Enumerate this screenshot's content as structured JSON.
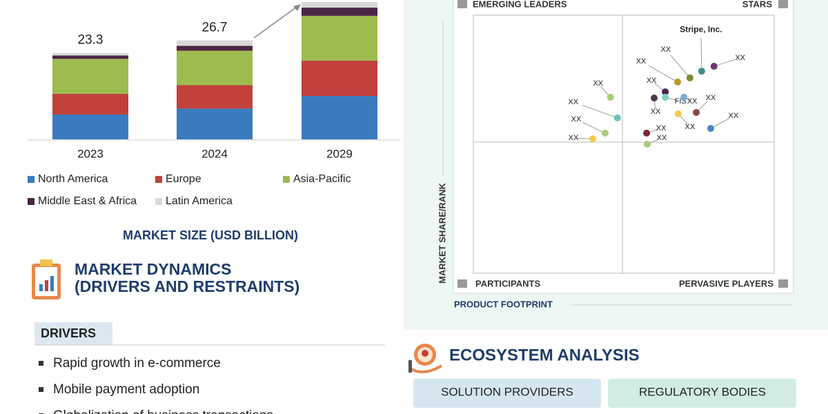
{
  "chart_data": [
    {
      "type": "bar",
      "stacked": true,
      "categories": [
        "2023",
        "2024",
        "2029"
      ],
      "series": [
        {
          "name": "North America",
          "color": "#3a7bbf",
          "values": [
            6.7,
            8.3,
            11.7
          ]
        },
        {
          "name": "Europe",
          "color": "#c2403a",
          "values": [
            5.6,
            6.3,
            9.5
          ]
        },
        {
          "name": "Asia-Pacific",
          "color": "#9dbb4e",
          "values": [
            9.4,
            9.3,
            12.1
          ]
        },
        {
          "name": "Middle East & Africa",
          "color": "#4a2545",
          "values": [
            0.9,
            1.3,
            2.2
          ]
        },
        {
          "name": "Latin America",
          "color": "#d9d9d9",
          "values": [
            0.7,
            1.5,
            1.5
          ]
        }
      ],
      "totals": [
        23.3,
        26.7
      ],
      "x_label": "MARKET SIZE (USD BILLION)"
    },
    {
      "type": "scatter",
      "x_label": "PRODUCT FOOTPRINT",
      "y_label": "MARKET SHARE/RANK",
      "quadrants": {
        "top_left": "EMERGING LEADERS",
        "top_right": "STARS",
        "bottom_left": "PARTICIPANTS",
        "bottom_right": "PERVASIVE PLAYERS"
      },
      "xlim": [
        0,
        100
      ],
      "ylim": [
        0,
        100
      ],
      "points": [
        {
          "label": "XX",
          "x": 80.0,
          "y": 80.2,
          "color": "#6b3a6b"
        },
        {
          "label": "Stripe, Inc.",
          "x": 75.9,
          "y": 78.3,
          "color": "#3f8f85"
        },
        {
          "label": "XX",
          "x": 72.0,
          "y": 75.7,
          "color": "#7a8a3a"
        },
        {
          "label": "XX",
          "x": 67.9,
          "y": 74.1,
          "color": "#b59a2a"
        },
        {
          "label": "XX",
          "x": 63.8,
          "y": 70.3,
          "color": "#4a2545"
        },
        {
          "label": "XX",
          "x": 60.1,
          "y": 67.9,
          "color": "#4b3b4b"
        },
        {
          "label": "FIS",
          "x": 63.8,
          "y": 68.2,
          "color": "#7fd0c8"
        },
        {
          "label": "XX",
          "x": 70.0,
          "y": 68.2,
          "color": "#7aaed6"
        },
        {
          "label": "XX",
          "x": 68.1,
          "y": 61.8,
          "color": "#f2cc4a"
        },
        {
          "label": "XX",
          "x": 74.1,
          "y": 62.3,
          "color": "#8a4a4a"
        },
        {
          "label": "XX",
          "x": 78.9,
          "y": 56.1,
          "color": "#4a86c8"
        },
        {
          "label": "XX",
          "x": 57.6,
          "y": 54.3,
          "color": "#7a2a3a"
        },
        {
          "label": "XX",
          "x": 57.8,
          "y": 50.0,
          "color": "#a9cc7a"
        },
        {
          "label": "XX",
          "x": 45.6,
          "y": 68.2,
          "color": "#a9cc7a"
        },
        {
          "label": "XX",
          "x": 47.9,
          "y": 60.2,
          "color": "#6cc2b8"
        },
        {
          "label": "XX",
          "x": 43.8,
          "y": 54.3,
          "color": "#a9cc7a"
        },
        {
          "label": "XX",
          "x": 39.7,
          "y": 52.1,
          "color": "#f2cc4a"
        }
      ]
    }
  ],
  "dynamics": {
    "title_line1": "MARKET DYNAMICS",
    "title_line2": "(DRIVERS AND RESTRAINTS)",
    "tab": "DRIVERS",
    "items": [
      "Rapid growth in e-commerce",
      "Mobile payment adoption",
      "Globalization of business transactions"
    ]
  },
  "ecosystem": {
    "title": "ECOSYSTEM ANALYSIS",
    "tabs": [
      "SOLUTION PROVIDERS",
      "REGULATORY BODIES"
    ]
  }
}
